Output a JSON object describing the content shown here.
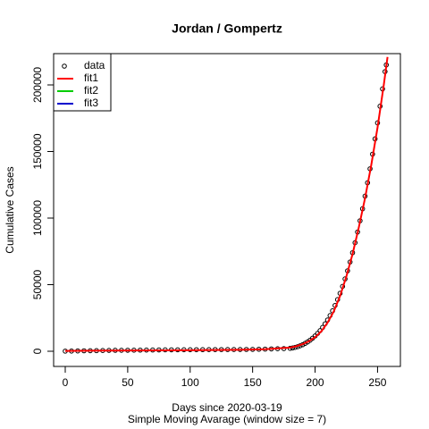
{
  "chart_data": {
    "type": "scatter",
    "title": "Jordan / Gompertz",
    "x_label": "Days since 2020-03-19",
    "subtitle": "Simple Moving Avarage (window size = 7)",
    "y_label": "Cumulative Cases",
    "xlim": [
      -9.3,
      268.3
    ],
    "ylim": [
      -11400,
      223500
    ],
    "xticks": [
      0,
      50,
      100,
      150,
      200,
      250
    ],
    "yticks": [
      0,
      50000,
      100000,
      150000,
      200000
    ],
    "legend_position": "top-left",
    "legend": [
      {
        "label": "data",
        "color": "#000000",
        "symbol": "point"
      },
      {
        "label": "fit1",
        "color": "#ff0000",
        "symbol": "line"
      },
      {
        "label": "fit2",
        "color": "#00cd00",
        "symbol": "line"
      },
      {
        "label": "fit3",
        "color": "#0000cd",
        "symbol": "line"
      }
    ],
    "series": [
      {
        "kind": "point",
        "color": "#000000",
        "x": [
          0,
          5,
          10,
          15,
          20,
          25,
          30,
          35,
          40,
          45,
          50,
          55,
          60,
          65,
          70,
          75,
          80,
          85,
          90,
          95,
          100,
          105,
          110,
          115,
          120,
          125,
          130,
          135,
          140,
          145,
          150,
          155,
          160,
          165,
          170,
          175,
          180,
          182,
          184,
          186,
          188,
          190,
          192,
          194,
          196,
          198,
          200,
          202,
          204,
          206,
          208,
          210,
          212,
          214,
          216,
          218,
          220,
          222,
          224,
          226,
          228,
          230,
          232,
          234,
          236,
          238,
          240,
          242,
          244,
          246,
          248,
          250,
          252,
          254,
          256,
          257
        ],
        "values": [
          100,
          150,
          250,
          350,
          400,
          450,
          550,
          650,
          700,
          720,
          750,
          800,
          850,
          900,
          950,
          1000,
          1050,
          1080,
          1100,
          1130,
          1150,
          1170,
          1200,
          1220,
          1250,
          1260,
          1280,
          1300,
          1320,
          1350,
          1400,
          1500,
          1600,
          1750,
          1900,
          2000,
          2200,
          2500,
          2900,
          3400,
          4100,
          4900,
          5900,
          7000,
          8300,
          9800,
          11500,
          13400,
          15500,
          17900,
          20600,
          23500,
          26800,
          30400,
          34400,
          38800,
          43500,
          48700,
          54300,
          60400,
          67000,
          74000,
          81500,
          89500,
          98000,
          107000,
          116500,
          126500,
          137000,
          148000,
          159500,
          171500,
          184000,
          197000,
          210000,
          215000
        ]
      },
      {
        "kind": "line",
        "color": "#ff0000",
        "x": [
          0,
          20,
          40,
          60,
          80,
          100,
          120,
          140,
          160,
          180,
          185,
          190,
          195,
          200,
          205,
          210,
          215,
          220,
          225,
          230,
          235,
          240,
          245,
          250,
          255,
          258
        ],
        "values": [
          300,
          400,
          500,
          600,
          700,
          800,
          900,
          1100,
          1500,
          2800,
          3800,
          5300,
          7500,
          10500,
          15000,
          21500,
          30000,
          41500,
          56000,
          73000,
          93000,
          115000,
          140000,
          168000,
          200000,
          221000
        ]
      }
    ]
  }
}
